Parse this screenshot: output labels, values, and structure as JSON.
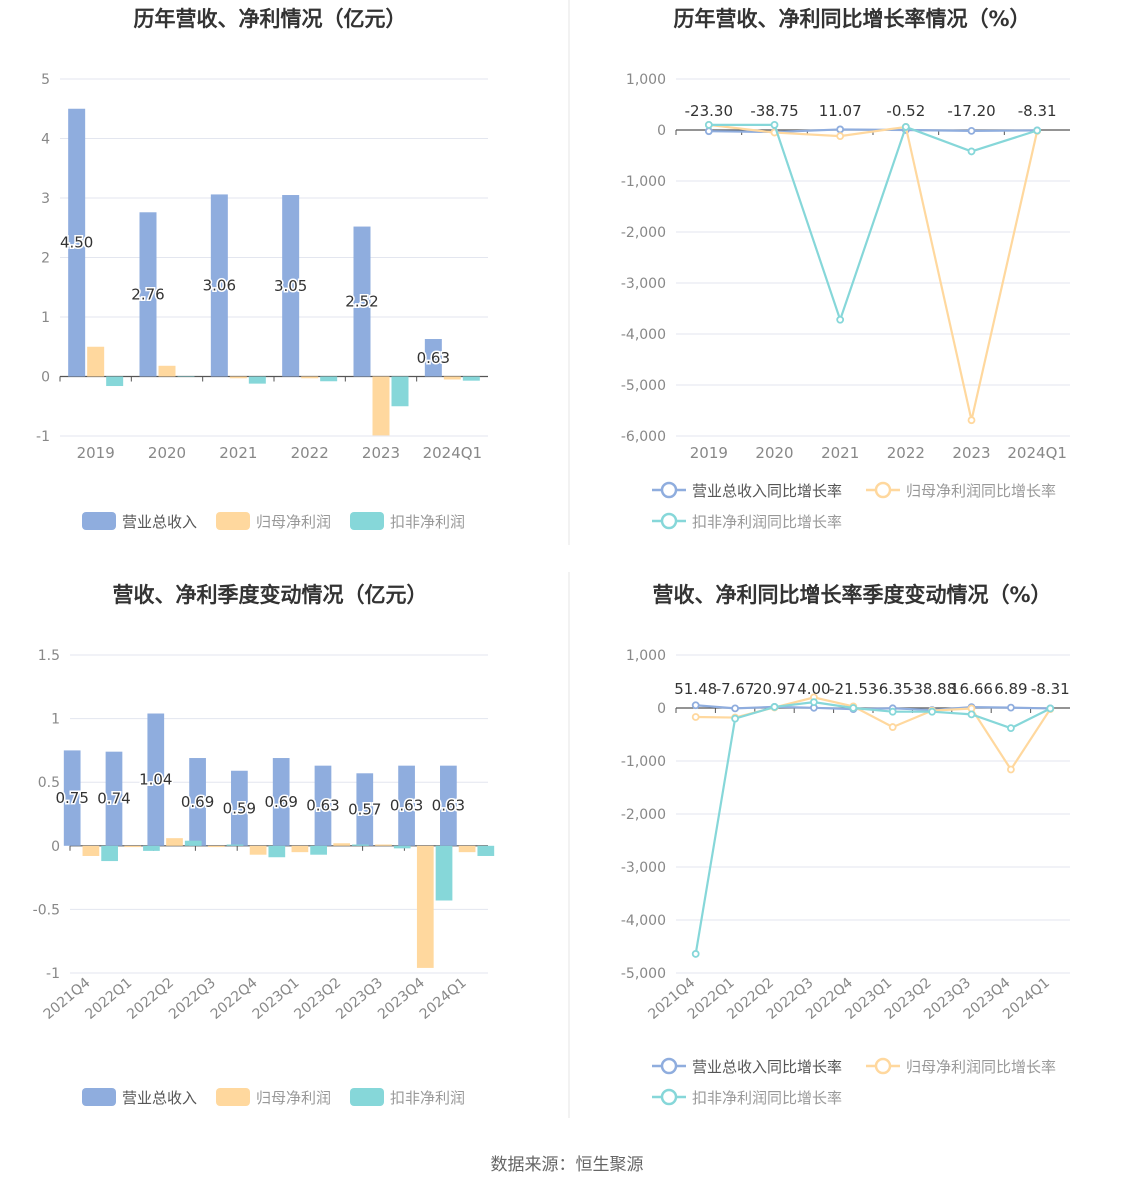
{
  "colors": {
    "revenue": "#8fadde",
    "parent_profit": "#ffd89e",
    "deducted_profit": "#86d7d9",
    "grid": "#e3e6ef",
    "axis_text": "#888888",
    "title": "#333333",
    "divider": "#e6e6e6"
  },
  "footer": "数据来源：恒生聚源",
  "chart_data": [
    {
      "id": "annual-amount",
      "type": "bar",
      "title": "历年营收、净利情况（亿元）",
      "categories": [
        "2019",
        "2020",
        "2021",
        "2022",
        "2023",
        "2024Q1"
      ],
      "series": [
        {
          "name": "营业总收入",
          "values": [
            4.5,
            2.76,
            3.06,
            3.05,
            2.52,
            0.63
          ]
        },
        {
          "name": "归母净利润",
          "values": [
            0.5,
            0.18,
            -0.03,
            -0.03,
            -0.99,
            -0.05
          ]
        },
        {
          "name": "扣非净利润",
          "values": [
            -0.16,
            0.0,
            -0.12,
            -0.08,
            -0.5,
            -0.07
          ]
        }
      ],
      "data_labels": [
        "4.50",
        "2.76",
        "3.06",
        "3.05",
        "2.52",
        "0.63"
      ],
      "ylim": [
        -1,
        5
      ],
      "yticks": [
        "5",
        "4",
        "3",
        "2",
        "1",
        "0",
        "-1"
      ],
      "legend": [
        "营业总收入",
        "归母净利润",
        "扣非净利润"
      ]
    },
    {
      "id": "annual-growth",
      "type": "line",
      "title": "历年营收、净利同比增长率情况（%）",
      "categories": [
        "2019",
        "2020",
        "2021",
        "2022",
        "2023",
        "2024Q1"
      ],
      "series": [
        {
          "name": "营业总收入同比增长率",
          "values": [
            -23.3,
            -38.75,
            11.07,
            -0.52,
            -17.2,
            -8.31
          ]
        },
        {
          "name": "归母净利润同比增长率",
          "values": [
            100,
            -50,
            -120,
            60,
            -5690,
            -20
          ]
        },
        {
          "name": "扣非净利润同比增长率",
          "values": [
            100,
            100,
            -3720,
            60,
            -420,
            -10
          ]
        }
      ],
      "data_labels": [
        "-23.30",
        "-38.75",
        "11.07",
        "-0.52",
        "-17.20",
        "-8.31"
      ],
      "ylim": [
        -6000,
        1000
      ],
      "yticks": [
        "1,000",
        "0",
        "-1,000",
        "-2,000",
        "-3,000",
        "-4,000",
        "-5,000",
        "-6,000"
      ],
      "legend": [
        "营业总收入同比增长率",
        "归母净利润同比增长率",
        "扣非净利润同比增长率"
      ]
    },
    {
      "id": "quarterly-amount",
      "type": "bar",
      "title": "营收、净利季度变动情况（亿元）",
      "categories": [
        "2021Q4",
        "2022Q1",
        "2022Q2",
        "2022Q3",
        "2022Q4",
        "2023Q1",
        "2023Q2",
        "2023Q3",
        "2023Q4",
        "2024Q1"
      ],
      "series": [
        {
          "name": "营业总收入",
          "values": [
            0.75,
            0.74,
            1.04,
            0.69,
            0.59,
            0.69,
            0.63,
            0.57,
            0.63,
            0.63
          ]
        },
        {
          "name": "归母净利润",
          "values": [
            -0.08,
            -0.01,
            0.06,
            -0.01,
            -0.07,
            -0.05,
            0.02,
            0.01,
            -0.96,
            -0.05
          ]
        },
        {
          "name": "扣非净利润",
          "values": [
            -0.12,
            -0.04,
            0.04,
            0.01,
            -0.09,
            -0.07,
            0.01,
            -0.02,
            -0.43,
            -0.08
          ]
        }
      ],
      "data_labels": [
        "0.75",
        "0.74",
        "1.04",
        "0.69",
        "0.59",
        "0.69",
        "0.63",
        "0.57",
        "0.63",
        "0.63"
      ],
      "ylim": [
        -1,
        1.5
      ],
      "yticks": [
        "1.5",
        "1",
        "0.5",
        "0",
        "-0.5",
        "-1"
      ],
      "legend": [
        "营业总收入",
        "归母净利润",
        "扣非净利润"
      ]
    },
    {
      "id": "quarterly-growth",
      "type": "line",
      "title": "营收、净利同比增长率季度变动情况（%）",
      "categories": [
        "2021Q4",
        "2022Q1",
        "2022Q2",
        "2022Q3",
        "2022Q4",
        "2023Q1",
        "2023Q2",
        "2023Q3",
        "2023Q4",
        "2024Q1"
      ],
      "series": [
        {
          "name": "营业总收入同比增长率",
          "values": [
            51.48,
            -7.67,
            20.97,
            4.0,
            -21.53,
            -6.35,
            -38.88,
            16.66,
            6.89,
            -8.31
          ]
        },
        {
          "name": "归母净利润同比增长率",
          "values": [
            -170,
            -180,
            10,
            200,
            30,
            -360,
            -50,
            -10,
            -1160,
            -20
          ]
        },
        {
          "name": "扣非净利润同比增长率",
          "values": [
            -4640,
            -200,
            20,
            110,
            0,
            -70,
            -70,
            -120,
            -380,
            -10
          ]
        }
      ],
      "data_labels": [
        "51.48",
        "-7.67",
        "20.97",
        "4.00",
        "-21.53",
        "-6.35",
        "-38.88",
        "16.66",
        "6.89",
        "-8.31"
      ],
      "ylim": [
        -5000,
        1000
      ],
      "yticks": [
        "1,000",
        "0",
        "-1,000",
        "-2,000",
        "-3,000",
        "-4,000",
        "-5,000"
      ],
      "legend": [
        "营业总收入同比增长率",
        "归母净利润同比增长率",
        "扣非净利润同比增长率"
      ]
    }
  ]
}
